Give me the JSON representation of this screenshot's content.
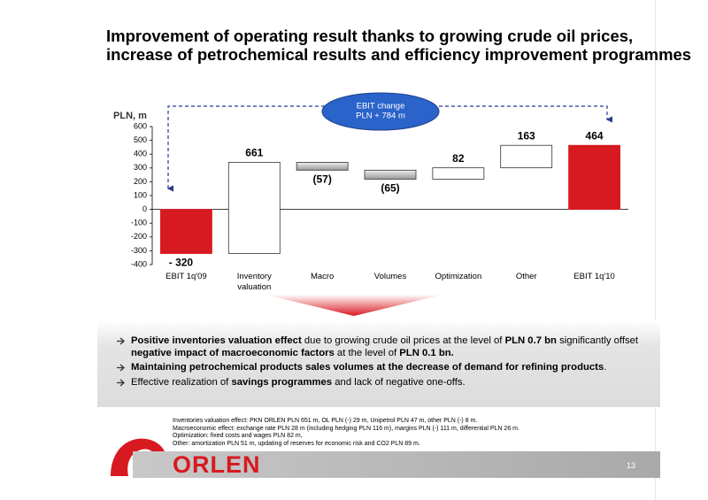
{
  "header": {
    "title": [
      "Improvement of operating result thanks to growing crude oil prices,",
      "increase of petrochemical results and efficiency improvement programmes"
    ]
  },
  "chart_data": {
    "type": "waterfall",
    "y_label": "PLN, m",
    "annotation": [
      "EBIT change",
      "PLN + 784 m"
    ],
    "categories": [
      "EBIT 1q'09",
      "Inventory valuation",
      "Macro",
      "Volumes",
      "Optimization",
      "Other",
      "EBIT 1q'10"
    ],
    "values": [
      -320,
      661,
      -57,
      -65,
      82,
      163,
      464
    ],
    "value_labels": [
      "- 320",
      "661",
      "(57)",
      "(65)",
      "82",
      "163",
      "464"
    ],
    "total_color": "#d71920",
    "increase_color": "#ffffff",
    "decrease_color": "#b5b5b5",
    "ylim": [
      -400,
      600
    ],
    "yticks": [
      -400,
      -300,
      -200,
      -100,
      0,
      100,
      200,
      300,
      400,
      500,
      600
    ]
  },
  "bullets": [
    [
      {
        "text": "Positive inventories valuation effect",
        "bold": true
      },
      {
        "text": " due to growing crude oil prices at the level of "
      },
      {
        "text": "PLN 0.7 bn",
        "bold": true
      },
      {
        "text": " significantly offset "
      },
      {
        "text": "negative impact of macroeconomic factors",
        "bold": true
      },
      {
        "text": " at the level of "
      },
      {
        "text": "PLN 0.1 bn.",
        "bold": true
      }
    ],
    [
      {
        "text": "Maintaining petrochemical products sales volumes at the decrease of demand for refining products",
        "bold": true
      },
      {
        "text": "."
      }
    ],
    [
      {
        "text": "Effective realization of "
      },
      {
        "text": "savings programmes",
        "bold": true
      },
      {
        "text": " and lack of negative one-offs."
      }
    ]
  ],
  "footnotes": [
    "Inventories valuation effect: PKN ORLEN PLN 651 m, OL PLN (-) 29 m, Unipetrol PLN 47 m, other PLN (-) 8 m.",
    "Macroeconomic effect: exchange rate PLN 28 m (including hedging PLN 116 m), margins PLN (-) 111 m, differential PLN 26 m.",
    "Optimization: fixed costs and wages PLN 82 m,",
    "Other: amortization PLN 51 m, updating of reserves for economic risk and CO2 PLN 89 m."
  ],
  "footer": {
    "logo": "ORLEN",
    "page": "13"
  }
}
